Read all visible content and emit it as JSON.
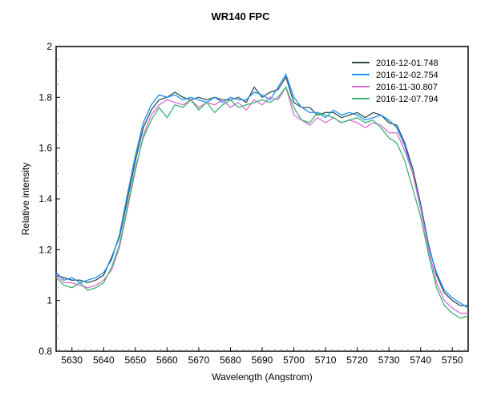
{
  "chart_data": {
    "type": "line",
    "title": "WR140   FPC",
    "xlabel": "Wavelength (Angstrom)",
    "ylabel": "Relative intensity",
    "xlim": [
      5625,
      5755
    ],
    "ylim": [
      0.8,
      2.0
    ],
    "x_ticks": [
      "5630",
      "5640",
      "5650",
      "5660",
      "5670",
      "5680",
      "5690",
      "5700",
      "5710",
      "5720",
      "5730",
      "5740",
      "5750"
    ],
    "y_ticks": [
      "0.8",
      "1",
      "1.2",
      "1.4",
      "1.6",
      "1.8",
      "2"
    ],
    "grid": false,
    "legend_position": "top-right",
    "x": [
      5625,
      5627.5,
      5630,
      5632.5,
      5635,
      5637.5,
      5640,
      5642.5,
      5645,
      5647.5,
      5650,
      5652.5,
      5655,
      5657.5,
      5660,
      5662.5,
      5665,
      5667.5,
      5670,
      5672.5,
      5675,
      5677.5,
      5680,
      5682.5,
      5685,
      5687.5,
      5690,
      5692.5,
      5695,
      5697.5,
      5700,
      5702.5,
      5705,
      5707.5,
      5710,
      5712.5,
      5715,
      5717.5,
      5720,
      5722.5,
      5725,
      5727.5,
      5730,
      5732.5,
      5735,
      5737.5,
      5740,
      5742.5,
      5745,
      5747.5,
      5750,
      5752.5,
      5755
    ],
    "series": [
      {
        "name": "2016-12-01.748",
        "color": "#2f4f4f",
        "values": [
          1.1,
          1.09,
          1.08,
          1.08,
          1.07,
          1.08,
          1.1,
          1.17,
          1.25,
          1.4,
          1.55,
          1.68,
          1.75,
          1.79,
          1.8,
          1.82,
          1.8,
          1.79,
          1.8,
          1.79,
          1.8,
          1.79,
          1.79,
          1.8,
          1.78,
          1.84,
          1.8,
          1.82,
          1.83,
          1.88,
          1.78,
          1.76,
          1.76,
          1.73,
          1.74,
          1.74,
          1.72,
          1.73,
          1.74,
          1.72,
          1.74,
          1.73,
          1.7,
          1.69,
          1.62,
          1.52,
          1.38,
          1.22,
          1.1,
          1.03,
          1.0,
          0.98,
          0.98
        ]
      },
      {
        "name": "2016-12-02.754",
        "color": "#1e90ff",
        "values": [
          1.11,
          1.08,
          1.09,
          1.07,
          1.08,
          1.09,
          1.11,
          1.16,
          1.26,
          1.42,
          1.57,
          1.7,
          1.77,
          1.81,
          1.8,
          1.81,
          1.79,
          1.8,
          1.79,
          1.78,
          1.8,
          1.78,
          1.8,
          1.79,
          1.79,
          1.82,
          1.81,
          1.79,
          1.84,
          1.89,
          1.8,
          1.76,
          1.74,
          1.74,
          1.72,
          1.75,
          1.73,
          1.74,
          1.73,
          1.71,
          1.72,
          1.73,
          1.71,
          1.68,
          1.61,
          1.5,
          1.37,
          1.21,
          1.11,
          1.04,
          1.01,
          0.99,
          0.97
        ]
      },
      {
        "name": "2016-11-30.807",
        "color": "#da70d6",
        "values": [
          1.1,
          1.07,
          1.07,
          1.06,
          1.05,
          1.06,
          1.08,
          1.12,
          1.21,
          1.36,
          1.51,
          1.65,
          1.73,
          1.77,
          1.79,
          1.78,
          1.77,
          1.79,
          1.76,
          1.78,
          1.77,
          1.79,
          1.76,
          1.78,
          1.75,
          1.79,
          1.77,
          1.8,
          1.79,
          1.84,
          1.73,
          1.71,
          1.69,
          1.72,
          1.7,
          1.72,
          1.7,
          1.71,
          1.7,
          1.68,
          1.7,
          1.69,
          1.66,
          1.66,
          1.59,
          1.5,
          1.36,
          1.2,
          1.07,
          1.0,
          0.97,
          0.95,
          0.95
        ]
      },
      {
        "name": "2016-12-07.794",
        "color": "#3cb371",
        "values": [
          1.09,
          1.06,
          1.05,
          1.07,
          1.04,
          1.05,
          1.07,
          1.13,
          1.22,
          1.37,
          1.52,
          1.64,
          1.71,
          1.76,
          1.72,
          1.77,
          1.76,
          1.79,
          1.75,
          1.78,
          1.74,
          1.77,
          1.79,
          1.76,
          1.77,
          1.78,
          1.79,
          1.78,
          1.8,
          1.84,
          1.76,
          1.71,
          1.7,
          1.74,
          1.73,
          1.72,
          1.7,
          1.71,
          1.72,
          1.7,
          1.71,
          1.68,
          1.64,
          1.62,
          1.55,
          1.44,
          1.33,
          1.18,
          1.05,
          0.98,
          0.95,
          0.93,
          0.94
        ]
      }
    ]
  }
}
